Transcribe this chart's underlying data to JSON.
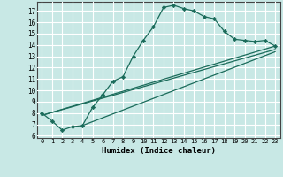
{
  "title": "",
  "xlabel": "Humidex (Indice chaleur)",
  "bg_color": "#c8e8e5",
  "grid_major_color": "#ffffff",
  "grid_minor_color": "#e8a0a0",
  "line_color": "#1a6b5a",
  "xlim": [
    -0.5,
    23.5
  ],
  "ylim": [
    5.8,
    17.8
  ],
  "xticks": [
    0,
    1,
    2,
    3,
    4,
    5,
    6,
    7,
    8,
    9,
    10,
    11,
    12,
    13,
    14,
    15,
    16,
    17,
    18,
    19,
    20,
    21,
    22,
    23
  ],
  "yticks": [
    6,
    7,
    8,
    9,
    10,
    11,
    12,
    13,
    14,
    15,
    16,
    17
  ],
  "curve1_x": [
    0,
    1,
    2,
    3,
    4,
    5,
    6,
    7,
    8,
    9,
    10,
    11,
    12,
    13,
    14,
    15,
    16,
    17,
    18,
    19,
    20,
    21,
    22,
    23
  ],
  "curve1_y": [
    8.0,
    7.3,
    6.5,
    6.8,
    6.9,
    8.5,
    9.6,
    10.8,
    11.2,
    13.0,
    14.4,
    15.6,
    17.3,
    17.5,
    17.2,
    17.0,
    16.5,
    16.3,
    15.2,
    14.5,
    14.4,
    14.3,
    14.4,
    13.9
  ],
  "line2_x": [
    0,
    23
  ],
  "line2_y": [
    7.8,
    13.9
  ],
  "line3_x": [
    0,
    23
  ],
  "line3_y": [
    7.8,
    13.6
  ],
  "line4_x": [
    4,
    23
  ],
  "line4_y": [
    6.9,
    13.4
  ]
}
